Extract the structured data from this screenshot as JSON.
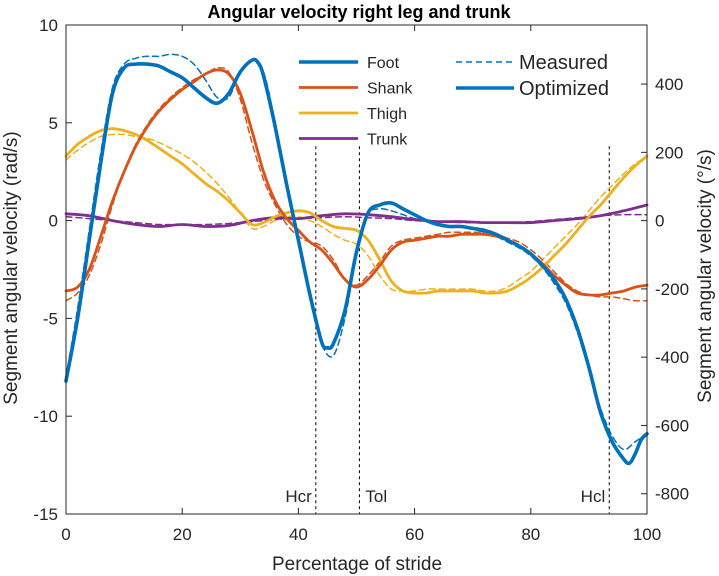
{
  "chart_data": {
    "type": "line",
    "title": "Angular velocity right leg and trunk",
    "xlabel": "Percentage of stride",
    "ylabel": "Segment angular velocity (rad/s)",
    "ylabel_right": "Segment angular velocity (°/s)",
    "xlim": [
      0,
      100
    ],
    "ylim": [
      -15,
      10
    ],
    "ylim_right": [
      -859.4,
      573.0
    ],
    "xticks": [
      "0",
      "20",
      "40",
      "60",
      "80",
      "100"
    ],
    "yticks": [
      "10",
      "5",
      "0",
      "-5",
      "-10",
      "-15"
    ],
    "yticks_right": [
      "400",
      "200",
      "0",
      "-200",
      "-400",
      "-600",
      "-800"
    ],
    "events": [
      {
        "label": "Hcr",
        "x": 43
      },
      {
        "label": "Tol",
        "x": 50.5
      },
      {
        "label": "Hcl",
        "x": 93.5
      }
    ],
    "legend": {
      "placement": "top-right",
      "segments": [
        {
          "name": "Foot",
          "color": "#0072BD"
        },
        {
          "name": "Shank",
          "color": "#D95319"
        },
        {
          "name": "Thigh",
          "color": "#EDB120"
        },
        {
          "name": "Trunk",
          "color": "#7E2F8E"
        }
      ],
      "styles": [
        {
          "name": "Measured",
          "dash": "dashed"
        },
        {
          "name": "Optimized",
          "dash": "solid"
        }
      ]
    },
    "series": [
      {
        "name": "Foot Optimized",
        "segment": "Foot",
        "style": "solid",
        "color": "#0072BD",
        "x": [
          0,
          2,
          4,
          6,
          8,
          10,
          12,
          14,
          16,
          18,
          20,
          22,
          24,
          26,
          28,
          30,
          32,
          33,
          34,
          36,
          38,
          40,
          42,
          44,
          45,
          46,
          48,
          50,
          52,
          54,
          56,
          58,
          60,
          62,
          64,
          66,
          68,
          70,
          72,
          74,
          76,
          78,
          80,
          82,
          84,
          86,
          88,
          90,
          92,
          94,
          96,
          97,
          98,
          99,
          100
        ],
        "y": [
          -8.2,
          -5,
          -1,
          3,
          6.5,
          7.8,
          8.0,
          8.0,
          7.9,
          7.6,
          7.3,
          6.8,
          6.3,
          6.0,
          6.5,
          7.6,
          8.2,
          8.1,
          7.4,
          4.8,
          1.8,
          -1.0,
          -3.8,
          -6.2,
          -6.5,
          -6.3,
          -4.6,
          -1.6,
          0.4,
          0.8,
          0.9,
          0.6,
          0.3,
          0.0,
          -0.2,
          -0.3,
          -0.3,
          -0.4,
          -0.5,
          -0.7,
          -1.0,
          -1.3,
          -1.7,
          -2.3,
          -3.0,
          -4.0,
          -5.5,
          -7.5,
          -9.8,
          -11.3,
          -12.2,
          -12.4,
          -11.9,
          -11.2,
          -10.9
        ]
      },
      {
        "name": "Foot Measured",
        "segment": "Foot",
        "style": "dashed",
        "color": "#0072BD",
        "x": [
          0,
          2,
          4,
          6,
          8,
          10,
          12,
          14,
          16,
          18,
          20,
          22,
          24,
          26,
          28,
          30,
          32,
          34,
          36,
          38,
          40,
          42,
          44,
          46,
          48,
          50,
          52,
          54,
          56,
          58,
          60,
          62,
          64,
          66,
          68,
          70,
          72,
          74,
          76,
          78,
          80,
          82,
          84,
          86,
          88,
          90,
          92,
          94,
          96,
          98,
          100
        ],
        "y": [
          -8.0,
          -4.5,
          -0.5,
          3.5,
          6.8,
          8.0,
          8.3,
          8.4,
          8.4,
          8.5,
          8.4,
          8.0,
          7.2,
          6.3,
          6.3,
          7.6,
          8.2,
          7.6,
          5.0,
          2.0,
          -1.0,
          -4.0,
          -6.3,
          -6.9,
          -5.0,
          -1.8,
          0.3,
          0.6,
          0.5,
          0.3,
          0.1,
          0.0,
          -0.2,
          -0.3,
          -0.3,
          -0.4,
          -0.6,
          -0.8,
          -1.1,
          -1.4,
          -1.8,
          -2.4,
          -3.2,
          -4.2,
          -5.7,
          -7.6,
          -9.6,
          -11.0,
          -11.7,
          -11.3,
          -10.9
        ]
      },
      {
        "name": "Shank Optimized",
        "segment": "Shank",
        "style": "solid",
        "color": "#D95319",
        "x": [
          0,
          2,
          4,
          6,
          8,
          10,
          12,
          14,
          16,
          18,
          20,
          22,
          24,
          26,
          28,
          30,
          32,
          34,
          36,
          38,
          40,
          42,
          44,
          46,
          48,
          50,
          52,
          54,
          56,
          58,
          60,
          62,
          64,
          66,
          68,
          70,
          72,
          74,
          76,
          78,
          80,
          82,
          84,
          86,
          88,
          90,
          92,
          94,
          96,
          98,
          100
        ],
        "y": [
          -3.6,
          -3.4,
          -2.5,
          -0.8,
          1.0,
          2.5,
          3.8,
          4.8,
          5.6,
          6.2,
          6.7,
          7.1,
          7.5,
          7.7,
          7.5,
          6.5,
          4.6,
          2.5,
          1.0,
          0.1,
          -0.5,
          -1.1,
          -1.5,
          -2.2,
          -3.0,
          -3.4,
          -3.0,
          -2.3,
          -1.5,
          -1.1,
          -1.0,
          -0.9,
          -0.8,
          -0.8,
          -0.7,
          -0.7,
          -0.7,
          -0.8,
          -1.0,
          -1.3,
          -1.7,
          -2.2,
          -2.8,
          -3.3,
          -3.7,
          -3.8,
          -3.8,
          -3.7,
          -3.6,
          -3.4,
          -3.3
        ]
      },
      {
        "name": "Shank Measured",
        "segment": "Shank",
        "style": "dashed",
        "color": "#D95319",
        "x": [
          0,
          2,
          4,
          6,
          8,
          10,
          12,
          14,
          16,
          18,
          20,
          22,
          24,
          26,
          28,
          30,
          32,
          34,
          36,
          38,
          40,
          42,
          44,
          46,
          48,
          50,
          52,
          54,
          56,
          58,
          60,
          62,
          64,
          66,
          68,
          70,
          72,
          74,
          76,
          78,
          80,
          82,
          84,
          86,
          88,
          90,
          92,
          94,
          96,
          98,
          100
        ],
        "y": [
          -4.1,
          -3.7,
          -2.8,
          -1.2,
          0.8,
          2.5,
          3.9,
          4.9,
          5.7,
          6.3,
          6.8,
          7.2,
          7.5,
          7.8,
          7.6,
          6.2,
          4.0,
          2.1,
          0.8,
          -0.2,
          -0.8,
          -1.1,
          -1.3,
          -2.0,
          -3.0,
          -3.3,
          -2.8,
          -2.1,
          -1.3,
          -1.0,
          -0.9,
          -0.8,
          -0.7,
          -0.6,
          -0.6,
          -0.6,
          -0.6,
          -0.7,
          -0.9,
          -1.1,
          -1.5,
          -2.0,
          -2.6,
          -3.2,
          -3.6,
          -3.8,
          -3.9,
          -3.9,
          -4.0,
          -4.1,
          -4.1
        ]
      },
      {
        "name": "Thigh Optimized",
        "segment": "Thigh",
        "style": "solid",
        "color": "#EDB120",
        "x": [
          0,
          2,
          4,
          6,
          8,
          10,
          12,
          14,
          16,
          18,
          20,
          22,
          24,
          26,
          28,
          30,
          32,
          34,
          36,
          38,
          40,
          42,
          44,
          46,
          48,
          50,
          52,
          54,
          56,
          58,
          60,
          62,
          64,
          66,
          68,
          70,
          72,
          74,
          76,
          78,
          80,
          82,
          84,
          86,
          88,
          90,
          92,
          94,
          96,
          98,
          100
        ],
        "y": [
          3.3,
          3.9,
          4.3,
          4.6,
          4.7,
          4.6,
          4.4,
          4.1,
          3.7,
          3.3,
          2.9,
          2.4,
          1.9,
          1.5,
          1.0,
          0.4,
          -0.2,
          -0.1,
          0.2,
          0.4,
          0.5,
          0.4,
          0.0,
          -0.3,
          -0.4,
          -0.5,
          -1.0,
          -2.0,
          -3.1,
          -3.6,
          -3.7,
          -3.7,
          -3.6,
          -3.6,
          -3.6,
          -3.6,
          -3.7,
          -3.7,
          -3.6,
          -3.3,
          -2.9,
          -2.4,
          -1.8,
          -1.2,
          -0.5,
          0.2,
          0.8,
          1.5,
          2.2,
          2.8,
          3.3
        ]
      },
      {
        "name": "Thigh Measured",
        "segment": "Thigh",
        "style": "dashed",
        "color": "#EDB120",
        "x": [
          0,
          2,
          4,
          6,
          8,
          10,
          12,
          14,
          16,
          18,
          20,
          22,
          24,
          26,
          28,
          30,
          32,
          34,
          36,
          38,
          40,
          42,
          44,
          46,
          48,
          50,
          52,
          54,
          56,
          58,
          60,
          62,
          64,
          66,
          68,
          70,
          72,
          74,
          76,
          78,
          80,
          82,
          84,
          86,
          88,
          90,
          92,
          94,
          96,
          98,
          100
        ],
        "y": [
          3.1,
          3.6,
          4.0,
          4.3,
          4.4,
          4.4,
          4.3,
          4.2,
          4.0,
          3.7,
          3.4,
          3.0,
          2.5,
          1.9,
          1.2,
          0.4,
          -0.4,
          -0.3,
          0.0,
          0.2,
          0.2,
          0.0,
          -0.3,
          -0.7,
          -1.0,
          -1.2,
          -1.8,
          -2.8,
          -3.5,
          -3.6,
          -3.6,
          -3.5,
          -3.5,
          -3.5,
          -3.5,
          -3.5,
          -3.6,
          -3.6,
          -3.4,
          -3.0,
          -2.6,
          -2.0,
          -1.4,
          -0.8,
          -0.2,
          0.5,
          1.2,
          1.8,
          2.4,
          2.9,
          3.3
        ]
      },
      {
        "name": "Trunk Optimized",
        "segment": "Trunk",
        "style": "solid",
        "color": "#7E2F8E",
        "x": [
          0,
          4,
          8,
          12,
          16,
          20,
          24,
          28,
          32,
          36,
          40,
          44,
          48,
          52,
          56,
          60,
          64,
          68,
          72,
          76,
          80,
          84,
          88,
          92,
          96,
          100
        ],
        "y": [
          0.35,
          0.25,
          0.0,
          -0.2,
          -0.3,
          -0.2,
          -0.3,
          -0.25,
          0.0,
          0.15,
          0.1,
          0.25,
          0.35,
          0.3,
          0.2,
          0.05,
          -0.05,
          -0.05,
          -0.1,
          -0.1,
          -0.1,
          0.0,
          0.1,
          0.25,
          0.5,
          0.8
        ]
      },
      {
        "name": "Trunk Measured",
        "segment": "Trunk",
        "style": "dashed",
        "color": "#7E2F8E",
        "x": [
          0,
          4,
          8,
          12,
          16,
          20,
          24,
          28,
          32,
          36,
          40,
          44,
          48,
          52,
          56,
          60,
          64,
          68,
          72,
          76,
          80,
          84,
          88,
          92,
          96,
          100
        ],
        "y": [
          0.2,
          0.1,
          0.0,
          -0.1,
          -0.2,
          -0.2,
          -0.2,
          -0.15,
          -0.05,
          0.05,
          0.1,
          0.15,
          0.2,
          0.15,
          0.1,
          0.0,
          -0.05,
          -0.1,
          -0.1,
          -0.1,
          -0.05,
          0.05,
          0.15,
          0.25,
          0.3,
          0.3
        ]
      }
    ]
  }
}
